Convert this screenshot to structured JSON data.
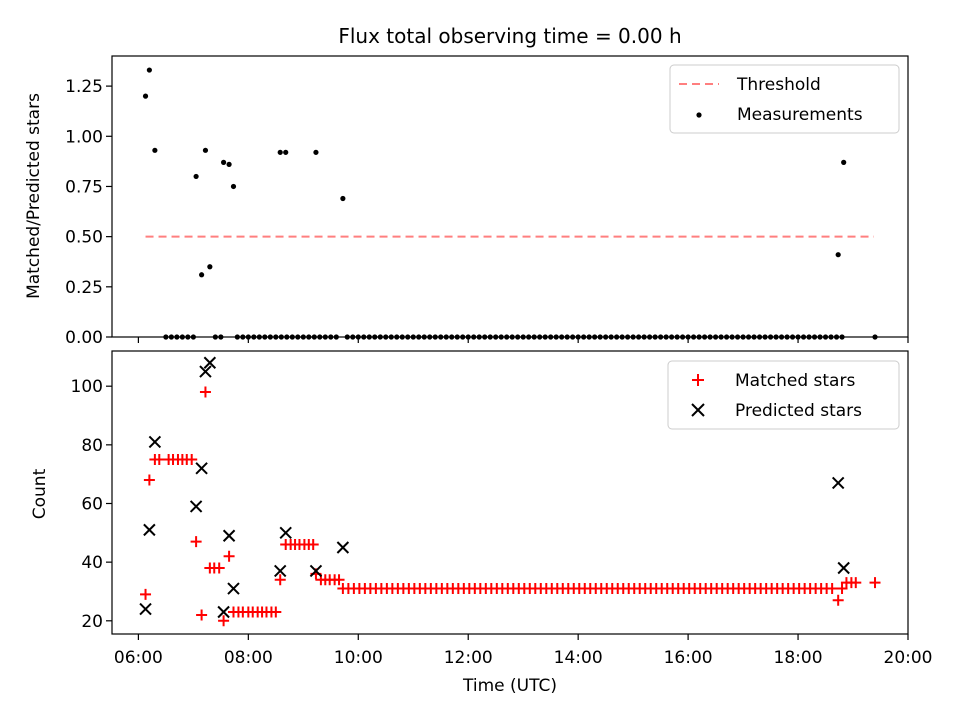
{
  "chart_data": {
    "title": "Flux total observing time = 0.00 h",
    "xlabel": "Time (UTC)",
    "x_unit": "hours UTC",
    "xlim": [
      5.52,
      20.0
    ],
    "xticks": [
      6,
      8,
      10,
      12,
      14,
      16,
      18,
      20
    ],
    "xtick_labels": [
      "06:00",
      "08:00",
      "10:00",
      "12:00",
      "14:00",
      "16:00",
      "18:00",
      "20:00"
    ],
    "panels": [
      {
        "type": "scatter",
        "ylabel": "Matched/Predicted stars",
        "ylim": [
          0.0,
          1.4
        ],
        "yticks": [
          0.0,
          0.25,
          0.5,
          0.75,
          1.0,
          1.25
        ],
        "ytick_labels": [
          "0.00",
          "0.25",
          "0.50",
          "0.75",
          "1.00",
          "1.25"
        ],
        "legend": {
          "placement": "top-right"
        },
        "threshold": {
          "name": "Threshold",
          "color": "#ff7f7f",
          "style": "dashed",
          "value": 0.5,
          "x_start": 6.13,
          "x_end": 19.38
        },
        "measurements": {
          "name": "Measurements",
          "color": "#000000",
          "marker": "dot",
          "points": [
            [
              6.13,
              1.2
            ],
            [
              6.2,
              1.33
            ],
            [
              6.3,
              0.93
            ],
            [
              7.05,
              0.8
            ],
            [
              7.15,
              0.31
            ],
            [
              7.22,
              0.93
            ],
            [
              7.3,
              0.35
            ],
            [
              7.55,
              0.87
            ],
            [
              7.65,
              0.86
            ],
            [
              7.73,
              0.75
            ],
            [
              8.58,
              0.92
            ],
            [
              8.68,
              0.92
            ],
            [
              9.23,
              0.92
            ],
            [
              9.72,
              0.69
            ],
            [
              18.73,
              0.41
            ],
            [
              18.83,
              0.87
            ],
            [
              19.4,
              0.0
            ]
          ],
          "zero_values": {
            "value": 0.0,
            "x_start": 6.5,
            "x_end": 18.9,
            "step": 0.1,
            "gaps": [
              [
                6.2,
                6.45
              ],
              [
                7.05,
                7.35
              ],
              [
                7.55,
                7.75
              ],
              [
                9.65,
                9.75
              ],
              [
                18.9,
                19.3
              ]
            ]
          }
        }
      },
      {
        "type": "scatter",
        "ylabel": "Count",
        "ylim": [
          15.5,
          112
        ],
        "yticks": [
          20,
          40,
          60,
          80,
          100
        ],
        "ytick_labels": [
          "20",
          "40",
          "60",
          "80",
          "100"
        ],
        "legend": {
          "placement": "top-right"
        },
        "matched": {
          "name": "Matched stars",
          "color": "#ff0000",
          "marker": "plus",
          "points": [
            [
              6.13,
              29
            ],
            [
              6.2,
              68
            ],
            [
              6.3,
              75
            ],
            [
              6.38,
              75
            ],
            [
              6.55,
              75
            ],
            [
              6.63,
              75
            ],
            [
              6.72,
              75
            ],
            [
              6.8,
              75
            ],
            [
              6.88,
              75
            ],
            [
              6.97,
              75
            ],
            [
              7.05,
              47
            ],
            [
              7.15,
              22
            ],
            [
              7.22,
              98
            ],
            [
              7.3,
              38
            ],
            [
              7.38,
              38
            ],
            [
              7.47,
              38
            ],
            [
              7.55,
              20
            ],
            [
              7.65,
              42
            ],
            [
              7.73,
              23
            ],
            [
              7.82,
              23
            ],
            [
              7.9,
              23
            ],
            [
              8.0,
              23
            ],
            [
              8.08,
              23
            ],
            [
              8.17,
              23
            ],
            [
              8.25,
              23
            ],
            [
              8.33,
              23
            ],
            [
              8.42,
              23
            ],
            [
              8.5,
              23
            ],
            [
              8.58,
              34
            ],
            [
              8.68,
              46
            ],
            [
              8.77,
              46
            ],
            [
              8.85,
              46
            ],
            [
              8.93,
              46
            ],
            [
              9.02,
              46
            ],
            [
              9.1,
              46
            ],
            [
              9.18,
              46
            ],
            [
              9.23,
              36
            ],
            [
              9.32,
              34
            ],
            [
              9.4,
              34
            ],
            [
              9.48,
              34
            ],
            [
              9.57,
              34
            ],
            [
              9.65,
              34
            ],
            [
              18.73,
              27
            ],
            [
              18.8,
              31
            ],
            [
              18.88,
              33
            ],
            [
              18.97,
              33
            ],
            [
              19.05,
              33
            ],
            [
              19.4,
              33
            ]
          ],
          "plateau": {
            "value": 31,
            "x_start": 9.72,
            "x_end": 18.7,
            "step": 0.1
          }
        },
        "predicted": {
          "name": "Predicted stars",
          "color": "#000000",
          "marker": "x",
          "points": [
            [
              6.13,
              24
            ],
            [
              6.2,
              51
            ],
            [
              6.3,
              81
            ],
            [
              7.05,
              59
            ],
            [
              7.15,
              72
            ],
            [
              7.22,
              105
            ],
            [
              7.3,
              108
            ],
            [
              7.55,
              23
            ],
            [
              7.65,
              49
            ],
            [
              7.73,
              31
            ],
            [
              8.58,
              37
            ],
            [
              8.68,
              50
            ],
            [
              9.23,
              37
            ],
            [
              9.72,
              45
            ],
            [
              18.73,
              67
            ],
            [
              18.83,
              38
            ]
          ]
        }
      }
    ]
  }
}
